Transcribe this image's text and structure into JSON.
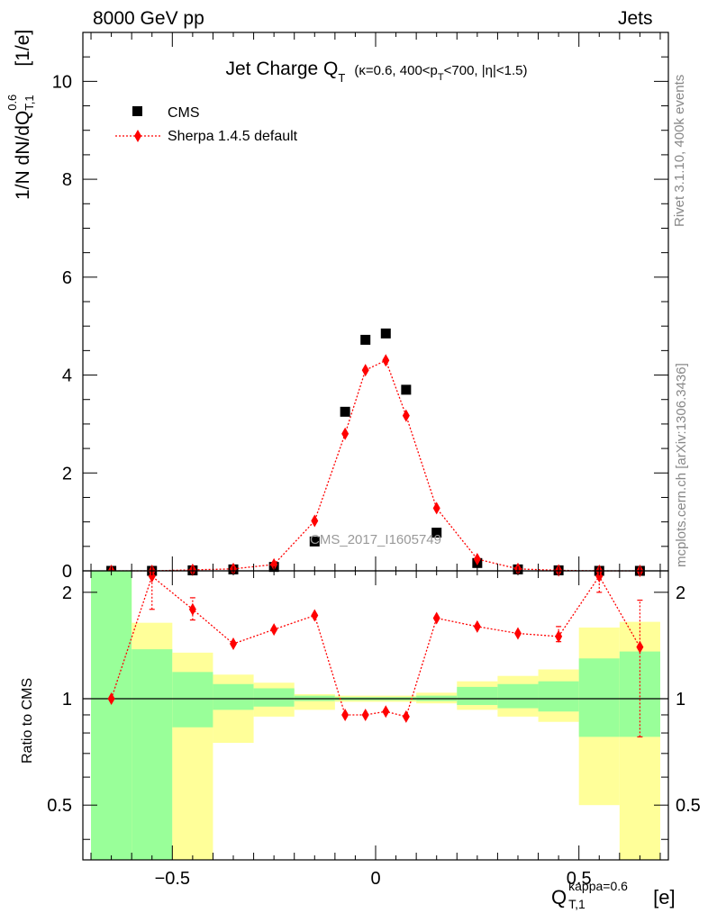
{
  "header": {
    "left": "8000 GeV pp",
    "right": "Jets"
  },
  "side": {
    "rivet": "Rivet 3.1.10,  400k events",
    "site": "mcplots.cern.ch [arXiv:1306.3436]"
  },
  "watermark": "CMS_2017_I1605749",
  "colors": {
    "cms": "#000000",
    "sherpa": "#ff0000",
    "band_inner": "#99ff99",
    "band_outer": "#ffff99"
  },
  "axes": {
    "main_ylabel_prefix": "1/N dN/dQ",
    "main_ylabel_sup": "0.6",
    "main_ylabel_sub": "T,1",
    "main_ylabel_suffix": " [1/e]",
    "ratio_ylabel": "Ratio to CMS",
    "xlabel_main": "Q",
    "xlabel_sup": "kappa=0.6",
    "xlabel_sub": "T,1",
    "xlabel_unit": "[e]"
  },
  "chart_data": {
    "type": "scatter",
    "title": "Jet Charge Q",
    "title_sub": "T",
    "title_params": "(κ=0.6, 400<p",
    "title_params_sub": "T",
    "title_params_end": "<700, |η|<1.5)",
    "xlim": [
      -0.72,
      0.72
    ],
    "ylim": [
      0,
      11
    ],
    "ratio_ylim": [
      0.35,
      2.3
    ],
    "xticks": [
      -0.5,
      0,
      0.5
    ],
    "xtick_labels": [
      "−0.5",
      "0",
      "0.5"
    ],
    "yticks": [
      0,
      2,
      4,
      6,
      8,
      10
    ],
    "ytick_labels": [
      "0",
      "2",
      "4",
      "6",
      "8",
      "10"
    ],
    "ratio_yticks": [
      0.5,
      1,
      2
    ],
    "ratio_ytick_labels": [
      "0.5",
      "1",
      "2"
    ],
    "legend_position": "top-left",
    "series": [
      {
        "name": "CMS",
        "style": "square-markers",
        "x": [
          -0.65,
          -0.55,
          -0.45,
          -0.35,
          -0.25,
          -0.15,
          -0.075,
          -0.025,
          0.025,
          0.075,
          0.15,
          0.25,
          0.35,
          0.45,
          0.55,
          0.65
        ],
        "y": [
          0.0,
          0.0,
          0.01,
          0.03,
          0.08,
          0.6,
          3.25,
          4.72,
          4.85,
          3.7,
          0.78,
          0.16,
          0.03,
          0.01,
          0.0,
          0.0
        ]
      },
      {
        "name": "Sherpa 1.4.5 default",
        "style": "red-diamond-dotted",
        "x": [
          -0.65,
          -0.55,
          -0.45,
          -0.35,
          -0.25,
          -0.15,
          -0.075,
          -0.025,
          0.025,
          0.075,
          0.15,
          0.25,
          0.35,
          0.45,
          0.55,
          0.65
        ],
        "y": [
          0.0,
          0.0,
          0.02,
          0.04,
          0.13,
          1.02,
          2.8,
          4.1,
          4.3,
          3.17,
          1.28,
          0.24,
          0.04,
          0.01,
          0.0,
          0.0
        ],
        "ratio": [
          1.0,
          2.22,
          1.79,
          1.43,
          1.57,
          1.72,
          0.9,
          0.9,
          0.92,
          0.89,
          1.69,
          1.6,
          1.53,
          1.5,
          2.22,
          1.4
        ],
        "ratio_err_lo": [
          0,
          1.79,
          1.67,
          0,
          0,
          0,
          0,
          0,
          0,
          0,
          0,
          0,
          0,
          1.45,
          2.0,
          0.78
        ],
        "ratio_err_hi": [
          0,
          2.3,
          1.93,
          0,
          0,
          0,
          0,
          0,
          0,
          0,
          0,
          0,
          0,
          1.6,
          2.3,
          1.9
        ]
      }
    ],
    "bands": {
      "edges": [
        -0.7,
        -0.6,
        -0.5,
        -0.4,
        -0.3,
        -0.2,
        -0.1,
        0.0,
        0.1,
        0.2,
        0.3,
        0.4,
        0.5,
        0.6,
        0.7
      ],
      "inner_lo": [
        0.35,
        0.35,
        0.83,
        0.93,
        0.95,
        0.985,
        0.99,
        0.99,
        0.985,
        0.96,
        0.94,
        0.92,
        0.78,
        0.78
      ],
      "inner_hi": [
        2.3,
        1.38,
        1.19,
        1.1,
        1.07,
        1.02,
        1.01,
        1.01,
        1.02,
        1.08,
        1.1,
        1.12,
        1.3,
        1.36
      ],
      "outer_lo": [
        0.35,
        0.35,
        0.35,
        0.75,
        0.89,
        0.93,
        0.98,
        0.98,
        0.97,
        0.93,
        0.89,
        0.86,
        0.5,
        0.35
      ],
      "outer_hi": [
        2.3,
        1.64,
        1.35,
        1.17,
        1.11,
        1.03,
        1.02,
        1.02,
        1.04,
        1.12,
        1.16,
        1.21,
        1.59,
        1.65
      ]
    }
  }
}
